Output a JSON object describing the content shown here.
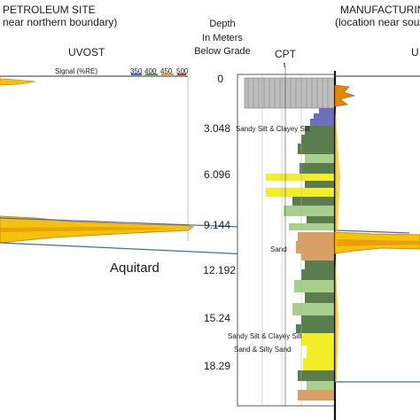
{
  "left_site": {
    "title": "PETROLEUM SITE",
    "subtitle": "near northern boundary)",
    "panel_label": "UVOST",
    "signal_label": "Signal (%RE)",
    "wavelengths": [
      "350",
      "400",
      "450",
      "500"
    ],
    "wavelength_colors": [
      "#3f6fc4",
      "#4e9a4e",
      "#e0a020",
      "#c0392b"
    ]
  },
  "right_site": {
    "title": "MANUFACTURIN",
    "subtitle": "(location near southe",
    "panel_label": "U"
  },
  "depth_axis": {
    "title_lines": [
      "Depth",
      "In Meters",
      "Below Grade"
    ],
    "ticks": [
      "0",
      "3.048",
      "6.096",
      "9.144",
      "12.192",
      "15.24",
      "18.29"
    ]
  },
  "cpt": {
    "label": "CPT",
    "tip_marker": "⇑"
  },
  "soil_labels": {
    "upper": "Sandy Silt & Clayey Silt",
    "sand": "Sand",
    "lower_1": "Sandy Silt & Clayey Silt",
    "lower_2": "Sand & Silty Sand"
  },
  "aquitard_label": "Aquitard",
  "colors": {
    "uvost_fill": "#f4c20d",
    "uvost_edge": "#e08a00",
    "correlation_line": "#3b6fb5",
    "sand_layer": "#d9a066",
    "silt_dark": "#5b7d4e",
    "silt_light": "#a9cf8e",
    "clay_blue": "#6f6fb8",
    "sand_yellow": "#f2ee2a",
    "fill_gray": "#bdbdbd"
  }
}
